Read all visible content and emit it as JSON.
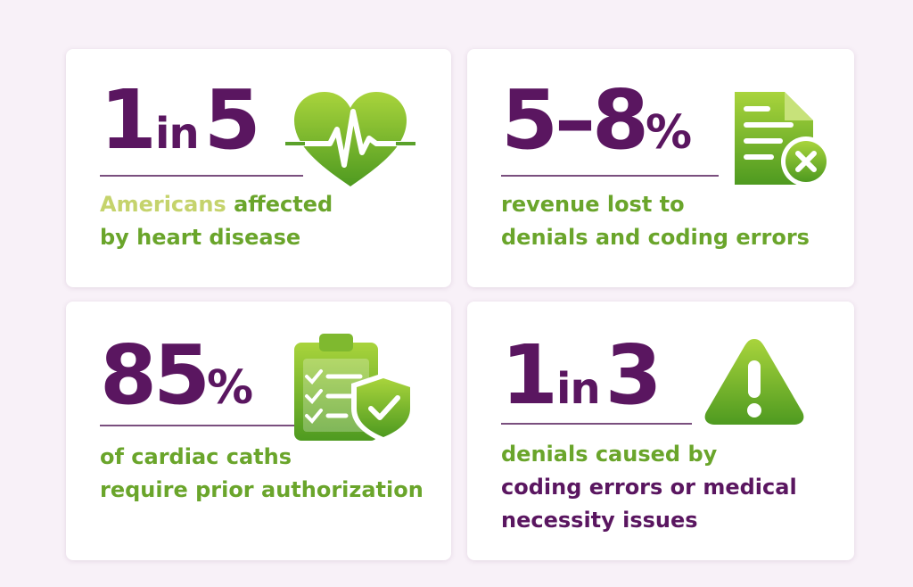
{
  "cards": [
    {
      "stat": [
        "1",
        "in",
        "5"
      ],
      "lines": [
        [
          {
            "text": "Americans",
            "color": "#c5d36c"
          },
          {
            "text": "affected",
            "color": "#6aa52b"
          }
        ],
        [
          {
            "text": "by heart disease",
            "color": "#6aa52b"
          }
        ]
      ]
    },
    {
      "stat": [
        "5–8",
        "%"
      ],
      "lines": [
        [
          {
            "text": "revenue lost to",
            "color": "#6aa52b"
          }
        ],
        [
          {
            "text": "denials and coding errors",
            "color": "#6aa52b"
          }
        ]
      ]
    },
    {
      "stat": [
        "85",
        "%"
      ],
      "lines": [
        [
          {
            "text": "of cardiac caths",
            "color": "#6aa52b"
          }
        ],
        [
          {
            "text": "require prior authorization",
            "color": "#6aa52b"
          }
        ]
      ]
    },
    {
      "stat": [
        "1",
        "in",
        "3"
      ],
      "lines": [
        [
          {
            "text": "denials caused by",
            "color": "#6aa52b"
          }
        ],
        [
          {
            "text": "coding errors or medical",
            "color": "#5a1660"
          }
        ],
        [
          {
            "text": "necessity issues",
            "color": "#5a1660"
          }
        ]
      ]
    }
  ]
}
